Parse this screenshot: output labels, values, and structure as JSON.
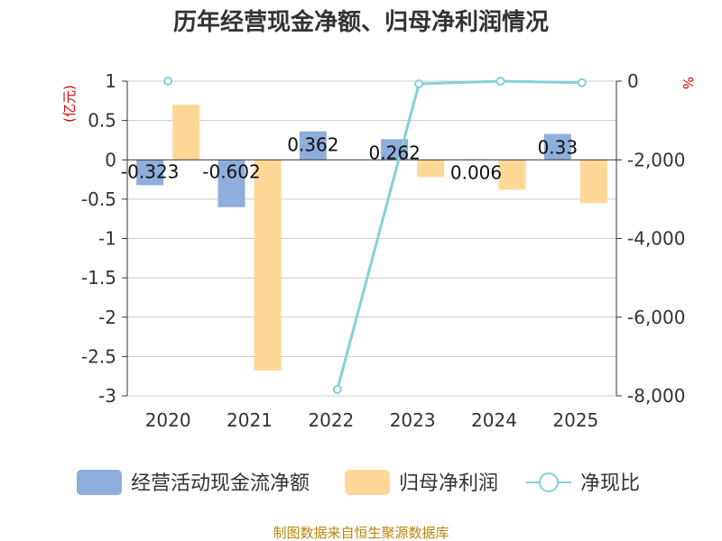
{
  "chart_data": {
    "type": "bar",
    "title": "历年经营现金净额、归母净利润情况",
    "categories": [
      "2020",
      "2021",
      "2022",
      "2023",
      "2024",
      "2025"
    ],
    "series": [
      {
        "name": "经营活动现金流净额",
        "type": "bar",
        "axis": "left",
        "color": "#8eaedc",
        "values": [
          -0.323,
          -0.602,
          0.362,
          0.262,
          0.006,
          0.33
        ],
        "labels": [
          "-0.323",
          "-0.602",
          "0.362",
          "0.262",
          "0.006",
          "0.33"
        ]
      },
      {
        "name": "归母净利润",
        "type": "bar",
        "axis": "left",
        "color": "#ffd898",
        "values": [
          0.7,
          -2.68,
          null,
          -0.22,
          -0.38,
          -0.55
        ]
      },
      {
        "name": "净现比",
        "type": "line",
        "axis": "right",
        "color": "#85d0d8",
        "values": [
          null,
          null,
          -7840,
          -70,
          0,
          -40
        ]
      }
    ],
    "left_axis": {
      "unit": "(亿元)",
      "ylim": [
        -3,
        1
      ],
      "ticks": [
        1,
        0.5,
        0,
        -0.5,
        -1,
        -1.5,
        -2,
        -2.5,
        -3
      ],
      "tick_labels": [
        "1",
        "0.5",
        "0",
        "-0.5",
        "-1",
        "-1.5",
        "-2",
        "-2.5",
        "-3"
      ]
    },
    "right_axis": {
      "unit": "%",
      "ylim": [
        -8000,
        0
      ],
      "ticks": [
        0,
        -2000,
        -4000,
        -6000,
        -8000
      ],
      "tick_labels": [
        "0",
        "-2,000",
        "-4,000",
        "-6,000",
        "-8,000"
      ]
    },
    "extra_point": {
      "series": "净现比",
      "category": "2020",
      "left_value": 1
    },
    "legend": [
      "经营活动现金流净额",
      "归母净利润",
      "净现比"
    ],
    "source": "制图数据来自恒生聚源数据库"
  }
}
